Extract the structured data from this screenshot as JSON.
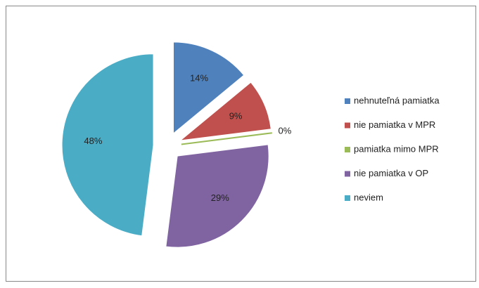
{
  "chart_data": {
    "type": "pie",
    "categories": [
      "nehnuteľná pamiatka",
      "nie pamiatka v MPR",
      "pamiatka mimo MPR",
      "nie pamiatka v OP",
      "neviem"
    ],
    "values": [
      14,
      9,
      0,
      29,
      48
    ],
    "value_labels": [
      "14%",
      "9%",
      "0%",
      "29%",
      "48%"
    ],
    "colors": [
      "#4f81bd",
      "#c0504d",
      "#9bbb59",
      "#8064a2",
      "#4bacc6"
    ],
    "legend": "right"
  }
}
